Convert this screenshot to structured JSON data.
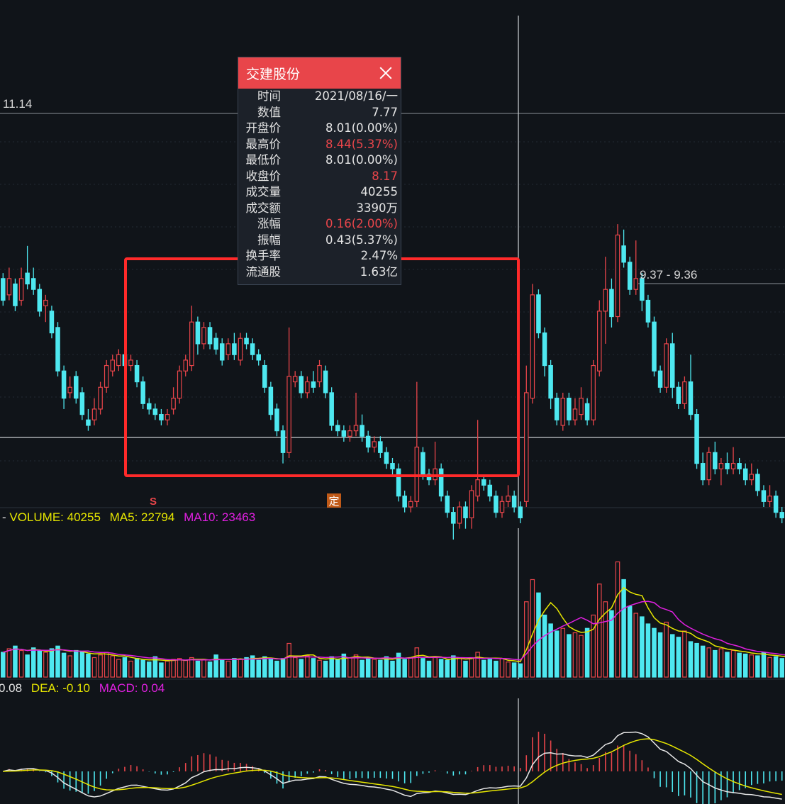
{
  "tooltip": {
    "title": "交建股份",
    "rows": [
      {
        "label": "时间",
        "value": "2021/08/16/一",
        "color": "normal"
      },
      {
        "label": "数值",
        "value": "7.77",
        "color": "normal"
      },
      {
        "label": "开盘价",
        "value": "8.01(0.00%)",
        "color": "normal"
      },
      {
        "label": "最高价",
        "value": "8.44(5.37%)",
        "color": "up"
      },
      {
        "label": "最低价",
        "value": "8.01(0.00%)",
        "color": "normal"
      },
      {
        "label": "收盘价",
        "value": "8.17",
        "color": "up"
      },
      {
        "label": "成交量",
        "value": "40255",
        "color": "normal"
      },
      {
        "label": "成交额",
        "value": "3390万",
        "color": "normal"
      },
      {
        "label": "涨幅",
        "value": "0.16(2.00%)",
        "color": "up"
      },
      {
        "label": "振幅",
        "value": "0.43(5.37%)",
        "color": "normal"
      },
      {
        "label": "换手率",
        "value": "2.47%",
        "color": "normal"
      },
      {
        "label": "流通股",
        "value": "1.63亿",
        "color": "normal"
      }
    ]
  },
  "colors": {
    "up": "#e8454a",
    "down": "#4ee8f0",
    "ma5": "#e6e600",
    "ma10": "#e020e0",
    "dif": "#e8e8e8",
    "dea": "#e6e600",
    "highlight_box": "#ff2a2a",
    "background": "#101419"
  },
  "chart_data": {
    "type": "candlestick",
    "price_axis": {
      "ylim": [
        7.2,
        11.6
      ],
      "level_high": "11.14",
      "level_low": "7.77"
    },
    "annotations": {
      "hover_price": "9.37 - 9.36",
      "marker_s": "S",
      "marker_ding": "定"
    },
    "candles": [
      [
        9.3,
        9.1,
        9.35,
        9.05
      ],
      [
        9.15,
        9.3,
        9.4,
        9.1
      ],
      [
        9.25,
        9.05,
        9.3,
        9.0
      ],
      [
        9.1,
        9.3,
        9.4,
        9.05
      ],
      [
        9.35,
        9.25,
        9.6,
        9.2
      ],
      [
        9.3,
        9.2,
        9.4,
        9.15
      ],
      [
        9.2,
        9.0,
        9.25,
        8.95
      ],
      [
        9.05,
        9.1,
        9.15,
        8.9
      ],
      [
        9.0,
        8.8,
        9.05,
        8.75
      ],
      [
        8.85,
        8.45,
        8.9,
        8.4
      ],
      [
        8.45,
        8.2,
        8.5,
        8.1
      ],
      [
        8.25,
        8.3,
        8.4,
        8.2
      ],
      [
        8.4,
        8.2,
        8.45,
        8.15
      ],
      [
        8.25,
        8.05,
        8.3,
        8.0
      ],
      [
        8.0,
        7.95,
        8.1,
        7.9
      ],
      [
        8.0,
        8.1,
        8.2,
        7.95
      ],
      [
        8.1,
        8.3,
        8.35,
        8.05
      ],
      [
        8.3,
        8.5,
        8.55,
        8.25
      ],
      [
        8.45,
        8.55,
        8.6,
        8.4
      ],
      [
        8.5,
        8.6,
        8.65,
        8.45
      ],
      [
        8.6,
        8.5,
        8.65,
        8.4
      ],
      [
        8.5,
        8.55,
        8.6,
        8.45
      ],
      [
        8.5,
        8.35,
        8.55,
        8.3
      ],
      [
        8.35,
        8.15,
        8.4,
        8.1
      ],
      [
        8.15,
        8.1,
        8.2,
        8.05
      ],
      [
        8.1,
        8.05,
        8.15,
        8.0
      ],
      [
        8.05,
        8.0,
        8.1,
        7.95
      ],
      [
        8.0,
        8.05,
        8.1,
        7.95
      ],
      [
        8.1,
        8.2,
        8.3,
        8.05
      ],
      [
        8.2,
        8.45,
        8.5,
        8.15
      ],
      [
        8.45,
        8.55,
        8.6,
        8.4
      ],
      [
        8.5,
        8.9,
        9.05,
        8.45
      ],
      [
        8.9,
        8.7,
        8.95,
        8.6
      ],
      [
        8.7,
        8.85,
        8.9,
        8.65
      ],
      [
        8.85,
        8.7,
        8.9,
        8.65
      ],
      [
        8.75,
        8.65,
        8.8,
        8.6
      ],
      [
        8.7,
        8.55,
        8.75,
        8.5
      ],
      [
        8.6,
        8.7,
        8.75,
        8.55
      ],
      [
        8.7,
        8.6,
        8.8,
        8.55
      ],
      [
        8.55,
        8.75,
        8.8,
        8.5
      ],
      [
        8.75,
        8.7,
        8.8,
        8.65
      ],
      [
        8.7,
        8.6,
        8.75,
        8.55
      ],
      [
        8.6,
        8.55,
        8.65,
        8.5
      ],
      [
        8.5,
        8.3,
        8.55,
        8.25
      ],
      [
        8.3,
        8.05,
        8.35,
        8.0
      ],
      [
        8.1,
        7.9,
        8.15,
        7.85
      ],
      [
        7.9,
        7.7,
        7.95,
        7.6
      ],
      [
        7.7,
        8.4,
        8.85,
        7.65
      ],
      [
        8.35,
        8.4,
        8.45,
        8.3
      ],
      [
        8.4,
        8.25,
        8.45,
        8.2
      ],
      [
        8.25,
        8.35,
        8.4,
        8.2
      ],
      [
        8.35,
        8.3,
        8.45,
        8.25
      ],
      [
        8.35,
        8.5,
        8.55,
        8.3
      ],
      [
        8.45,
        8.25,
        8.5,
        8.2
      ],
      [
        8.25,
        7.95,
        8.3,
        7.9
      ],
      [
        7.95,
        7.9,
        8.0,
        7.85
      ],
      [
        7.9,
        7.85,
        7.95,
        7.8
      ],
      [
        7.85,
        7.9,
        7.95,
        7.8
      ],
      [
        7.9,
        7.95,
        8.25,
        7.85
      ],
      [
        7.95,
        7.85,
        8.05,
        7.8
      ],
      [
        7.85,
        7.75,
        7.9,
        7.7
      ],
      [
        7.75,
        7.8,
        7.85,
        7.7
      ],
      [
        7.8,
        7.7,
        7.85,
        7.65
      ],
      [
        7.7,
        7.6,
        7.75,
        7.55
      ],
      [
        7.6,
        7.55,
        7.65,
        7.5
      ],
      [
        7.55,
        7.3,
        7.6,
        7.25
      ],
      [
        7.3,
        7.2,
        7.35,
        7.15
      ],
      [
        7.2,
        7.25,
        7.3,
        7.15
      ],
      [
        7.25,
        7.75,
        8.35,
        7.2
      ],
      [
        7.7,
        7.5,
        7.75,
        7.45
      ],
      [
        7.5,
        7.45,
        7.55,
        7.4
      ],
      [
        7.45,
        7.55,
        7.8,
        7.4
      ],
      [
        7.55,
        7.3,
        7.6,
        7.25
      ],
      [
        7.3,
        7.15,
        7.35,
        7.1
      ],
      [
        7.15,
        7.05,
        7.2,
        6.9
      ],
      [
        7.05,
        7.2,
        7.25,
        7.0
      ],
      [
        7.2,
        7.1,
        7.25,
        7.0
      ],
      [
        7.1,
        7.35,
        7.4,
        7.0
      ],
      [
        7.3,
        7.45,
        8.0,
        7.25
      ],
      [
        7.45,
        7.4,
        7.5,
        7.35
      ],
      [
        7.4,
        7.3,
        7.45,
        7.25
      ],
      [
        7.3,
        7.15,
        7.35,
        7.1
      ],
      [
        7.15,
        7.25,
        7.3,
        7.1
      ],
      [
        7.25,
        7.3,
        7.4,
        7.2
      ],
      [
        7.3,
        7.2,
        7.35,
        7.15
      ],
      [
        7.2,
        7.1,
        7.25,
        7.05
      ],
      [
        7.25,
        8.25,
        8.5,
        7.2
      ],
      [
        8.2,
        9.15,
        9.25,
        8.15
      ],
      [
        9.15,
        8.8,
        9.2,
        8.75
      ],
      [
        8.8,
        8.5,
        8.85,
        8.4
      ],
      [
        8.5,
        8.2,
        8.55,
        8.1
      ],
      [
        8.2,
        8.0,
        8.25,
        7.95
      ],
      [
        7.95,
        8.2,
        8.25,
        7.9
      ],
      [
        8.2,
        8.0,
        8.25,
        7.95
      ],
      [
        8.0,
        8.1,
        8.2,
        7.95
      ],
      [
        8.05,
        8.2,
        8.3,
        8.0
      ],
      [
        8.15,
        8.0,
        8.2,
        7.95
      ],
      [
        8.0,
        8.5,
        8.55,
        7.95
      ],
      [
        8.45,
        9.0,
        9.1,
        8.4
      ],
      [
        9.0,
        9.2,
        9.5,
        8.7
      ],
      [
        9.2,
        8.95,
        9.3,
        8.85
      ],
      [
        8.95,
        9.7,
        9.8,
        8.9
      ],
      [
        9.6,
        9.45,
        9.75,
        9.4
      ],
      [
        9.45,
        9.2,
        9.5,
        9.15
      ],
      [
        9.2,
        9.3,
        9.65,
        9.15
      ],
      [
        9.3,
        9.1,
        9.35,
        9.0
      ],
      [
        9.1,
        8.9,
        9.15,
        8.85
      ],
      [
        8.9,
        8.45,
        8.95,
        8.4
      ],
      [
        8.45,
        8.3,
        8.5,
        8.25
      ],
      [
        8.3,
        8.7,
        8.75,
        8.25
      ],
      [
        8.7,
        8.3,
        8.8,
        8.2
      ],
      [
        8.3,
        8.15,
        8.35,
        8.1
      ],
      [
        8.15,
        8.35,
        8.4,
        8.1
      ],
      [
        8.35,
        8.05,
        8.6,
        8.0
      ],
      [
        8.05,
        7.6,
        8.1,
        7.55
      ],
      [
        7.6,
        7.45,
        7.7,
        7.4
      ],
      [
        7.45,
        7.7,
        7.75,
        7.4
      ],
      [
        7.7,
        7.55,
        7.8,
        7.5
      ],
      [
        7.55,
        7.6,
        7.65,
        7.4
      ],
      [
        7.6,
        7.55,
        7.7,
        7.5
      ],
      [
        7.55,
        7.6,
        7.75,
        7.5
      ],
      [
        7.6,
        7.55,
        7.65,
        7.5
      ],
      [
        7.55,
        7.45,
        7.6,
        7.4
      ],
      [
        7.45,
        7.5,
        7.6,
        7.4
      ],
      [
        7.5,
        7.35,
        7.55,
        7.3
      ],
      [
        7.35,
        7.25,
        7.4,
        7.2
      ],
      [
        7.25,
        7.3,
        7.4,
        7.2
      ],
      [
        7.3,
        7.15,
        7.35,
        7.1
      ],
      [
        7.15,
        7.1,
        7.2,
        7.05
      ]
    ],
    "volume_panel": {
      "label": "VOLUME: 40255",
      "ma5_label": "MA5: 22794",
      "ma10_label": "MA10: 23463",
      "volumes": [
        28,
        32,
        35,
        30,
        25,
        33,
        30,
        28,
        32,
        35,
        27,
        24,
        30,
        29,
        26,
        22,
        25,
        28,
        24,
        20,
        22,
        18,
        21,
        19,
        17,
        23,
        16,
        18,
        20,
        21,
        19,
        22,
        18,
        20,
        17,
        25,
        19,
        18,
        21,
        20,
        22,
        24,
        19,
        23,
        20,
        18,
        21,
        38,
        22,
        20,
        24,
        21,
        19,
        18,
        23,
        20,
        26,
        22,
        25,
        19,
        21,
        20,
        19,
        23,
        18,
        27,
        20,
        22,
        33,
        21,
        18,
        22,
        20,
        19,
        24,
        21,
        18,
        22,
        28,
        19,
        20,
        18,
        21,
        17,
        16,
        15,
        85,
        110,
        95,
        70,
        60,
        52,
        55,
        48,
        50,
        47,
        55,
        70,
        105,
        85,
        75,
        130,
        110,
        80,
        72,
        68,
        60,
        55,
        50,
        62,
        48,
        45,
        52,
        40,
        38,
        35,
        33,
        30,
        32,
        28,
        30,
        27,
        26,
        25,
        24,
        28,
        22,
        23,
        21,
        20
      ]
    },
    "macd_panel": {
      "label_dif": "0.08",
      "label_dea": "DEA: -0.10",
      "label_macd": "MACD: 0.04"
    }
  }
}
